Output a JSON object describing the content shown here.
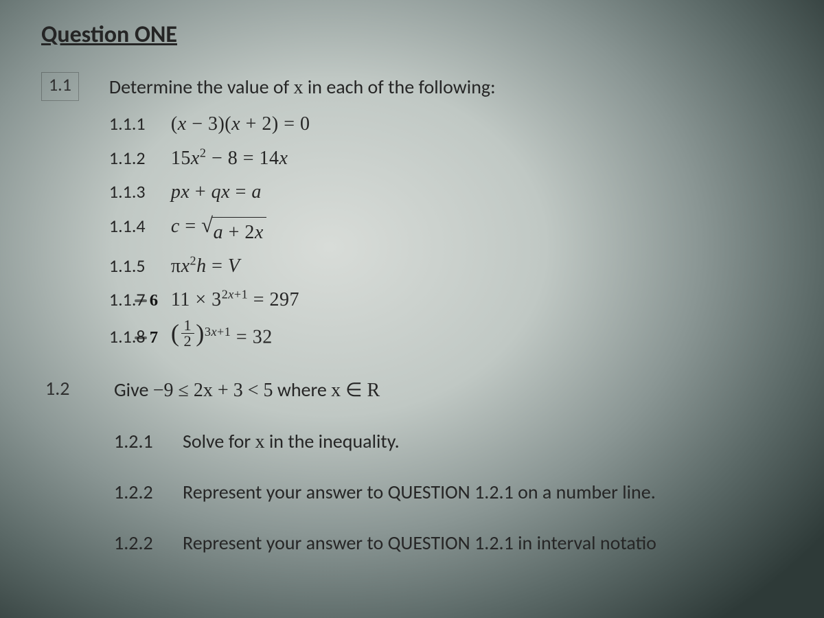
{
  "title": "Question ONE",
  "q11": {
    "num": "1.1",
    "prompt_pre": "Determine the value of ",
    "prompt_var": "x",
    "prompt_post": " in each of the following:",
    "items": [
      {
        "num": "1.1.1",
        "eq_html": "(<span class='it'>x</span> − 3)(<span class='it'>x</span> + 2) = 0"
      },
      {
        "num": "1.1.2",
        "eq_html": "15<span class='it'>x</span><sup>2</sup> − 8 = 14<span class='it'>x</span>"
      },
      {
        "num": "1.1.3",
        "eq_html": "<span class='it'>p</span><span class='it'>x</span> + <span class='it'>q</span><span class='it'>x</span> = <span class='it'>a</span>"
      },
      {
        "num": "1.1.4",
        "eq_html": "<span class='it'>c</span> = <span class='sqrt'><span class='rad'>√</span><span class='under'><span class='it'>a</span> + 2<span class='it'>x</span></span></span>"
      },
      {
        "num": "1.1.5",
        "eq_html": "π<span class='it'>x</span><sup>2</sup><span class='it'>h</span> = <span class='it'>V</span>"
      },
      {
        "num_pre": "1.1.",
        "num_strike": "7",
        "num_hand": "6",
        "eq_html": "11 × 3<sup>2<span class='it'>x</span>+1</sup> = 297"
      },
      {
        "num_pre": "1.1.",
        "num_strike": "8",
        "num_hand": "7",
        "eq_html": "<span class='paren-frac'><span class='pL'>(</span><span class='frac'><span class='n'>1</span><span class='d'>2</span></span><span class='pR'>)</span></span><sup>3<span class='it'>x</span>+1</sup> = 32"
      }
    ]
  },
  "q12": {
    "num": "1.2",
    "give": "Give ",
    "ineq_html": "−9 ≤ 2<span class='it'>x</span> + 3 &lt; 5",
    "where_pre": "  where ",
    "where_math": "<span class='it'>x</span> ∈ <span class='it'>R</span>",
    "subs": [
      {
        "num": "1.2.1",
        "text_pre": "Solve for ",
        "text_var": "x",
        "text_post": " in the inequality."
      },
      {
        "num": "1.2.2",
        "text": "Represent your answer to QUESTION 1.2.1 on a number line."
      },
      {
        "num": "1.2.2",
        "text": "Represent your answer to QUESTION 1.2.1 in interval notatio"
      }
    ]
  },
  "colors": {
    "text": "#262626",
    "bg_center": "#d8dcd8",
    "bg_edge": "#2e3a38"
  },
  "fontsizes": {
    "title": 34,
    "body": 28,
    "subnum": 26
  }
}
